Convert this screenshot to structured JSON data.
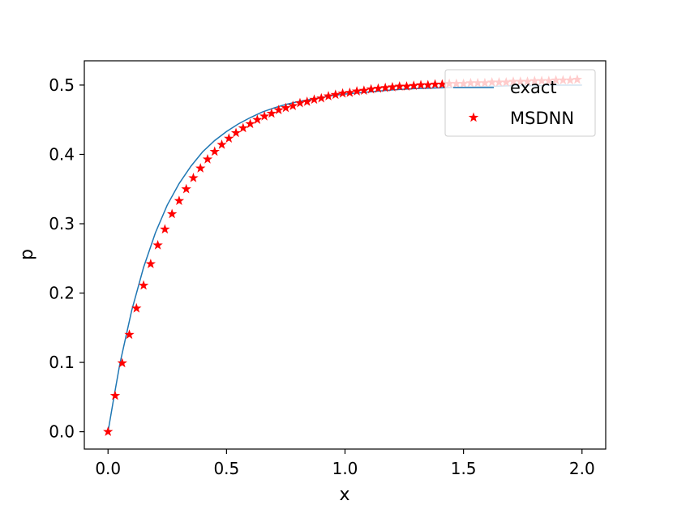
{
  "chart_data": {
    "type": "line",
    "xlabel": "x",
    "ylabel": "p",
    "xlim": [
      -0.1,
      2.1
    ],
    "ylim": [
      -0.025,
      0.535
    ],
    "xticks": [
      "0.0",
      "0.5",
      "1.0",
      "1.5",
      "2.0"
    ],
    "xtick_values": [
      0,
      0.5,
      1.0,
      1.5,
      2.0
    ],
    "yticks": [
      "0.0",
      "0.1",
      "0.2",
      "0.3",
      "0.4",
      "0.5"
    ],
    "ytick_values": [
      0,
      0.1,
      0.2,
      0.3,
      0.4,
      0.5
    ],
    "grid": false,
    "legend_position": "upper-right",
    "series": [
      {
        "name": "exact",
        "style": "line",
        "color": "#1f77b4",
        "x": [
          0,
          0.025,
          0.05,
          0.1,
          0.15,
          0.2,
          0.25,
          0.3,
          0.35,
          0.4,
          0.45,
          0.5,
          0.55,
          0.6,
          0.65,
          0.7,
          0.75,
          0.8,
          0.85,
          0.9,
          0.95,
          1.0,
          1.1,
          1.2,
          1.3,
          1.4,
          1.5,
          1.6,
          1.7,
          1.8,
          1.9,
          2.0
        ],
        "y": [
          0,
          0.05,
          0.098,
          0.175,
          0.237,
          0.287,
          0.327,
          0.358,
          0.383,
          0.404,
          0.42,
          0.433,
          0.444,
          0.453,
          0.461,
          0.467,
          0.472,
          0.476,
          0.479,
          0.482,
          0.485,
          0.487,
          0.49,
          0.493,
          0.495,
          0.496,
          0.497,
          0.498,
          0.499,
          0.499,
          0.5,
          0.5
        ]
      },
      {
        "name": "MSDNN",
        "style": "star-markers",
        "color": "#ff0000",
        "x": [
          0,
          0.03,
          0.06,
          0.09,
          0.12,
          0.15,
          0.18,
          0.21,
          0.24,
          0.27,
          0.3,
          0.33,
          0.36,
          0.39,
          0.42,
          0.45,
          0.48,
          0.51,
          0.54,
          0.57,
          0.6,
          0.63,
          0.66,
          0.69,
          0.72,
          0.75,
          0.78,
          0.81,
          0.84,
          0.87,
          0.9,
          0.93,
          0.96,
          0.99,
          1.02,
          1.05,
          1.08,
          1.11,
          1.14,
          1.17,
          1.2,
          1.23,
          1.26,
          1.29,
          1.32,
          1.35,
          1.38,
          1.41,
          1.44,
          1.47,
          1.5,
          1.53,
          1.56,
          1.59,
          1.62,
          1.65,
          1.68,
          1.71,
          1.74,
          1.77,
          1.8,
          1.83,
          1.86,
          1.89,
          1.92,
          1.95,
          1.98
        ],
        "y": [
          0,
          0.052,
          0.099,
          0.14,
          0.178,
          0.211,
          0.242,
          0.269,
          0.292,
          0.314,
          0.333,
          0.35,
          0.366,
          0.38,
          0.393,
          0.404,
          0.414,
          0.423,
          0.431,
          0.438,
          0.444,
          0.45,
          0.455,
          0.459,
          0.464,
          0.467,
          0.47,
          0.474,
          0.476,
          0.479,
          0.481,
          0.484,
          0.486,
          0.488,
          0.489,
          0.491,
          0.492,
          0.494,
          0.495,
          0.496,
          0.497,
          0.498,
          0.498,
          0.499,
          0.5,
          0.5,
          0.501,
          0.501,
          0.502,
          0.502,
          0.502,
          0.503,
          0.503,
          0.503,
          0.504,
          0.504,
          0.504,
          0.505,
          0.505,
          0.505,
          0.506,
          0.506,
          0.506,
          0.507,
          0.507,
          0.507,
          0.508
        ]
      }
    ]
  }
}
